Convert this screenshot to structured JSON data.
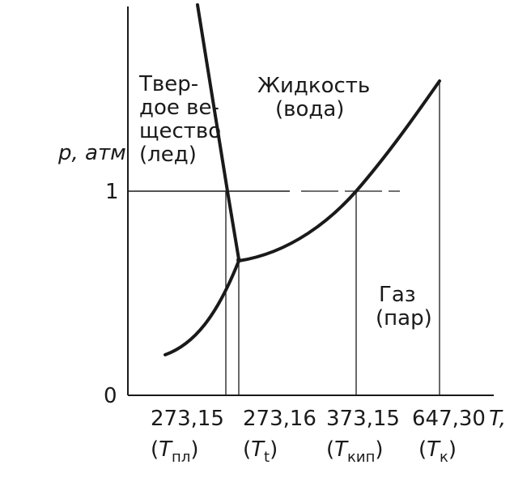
{
  "axes": {
    "y_label": "p, атм",
    "y_tick_1": "1",
    "y_tick_0": "0",
    "x_label": "T,"
  },
  "regions": {
    "solid_line1": "Твер-",
    "solid_line2": "дое ве-",
    "solid_line3": "щество",
    "solid_line4": "(лед)",
    "liquid_line1": "Жидкость",
    "liquid_line2": "(вода)",
    "gas_line1": "Газ",
    "gas_line2": "(пар)"
  },
  "x_ticks": [
    {
      "value": "273,15",
      "sym": "T",
      "sub": "пл"
    },
    {
      "value": "273,16",
      "sym": "T",
      "sub": "t"
    },
    {
      "value": "373,15",
      "sym": "T",
      "sub": "кип"
    },
    {
      "value": "647,30",
      "sym": "T",
      "sub": "к"
    }
  ],
  "colors": {
    "ink": "#1a1a1a",
    "background": "#ffffff"
  }
}
